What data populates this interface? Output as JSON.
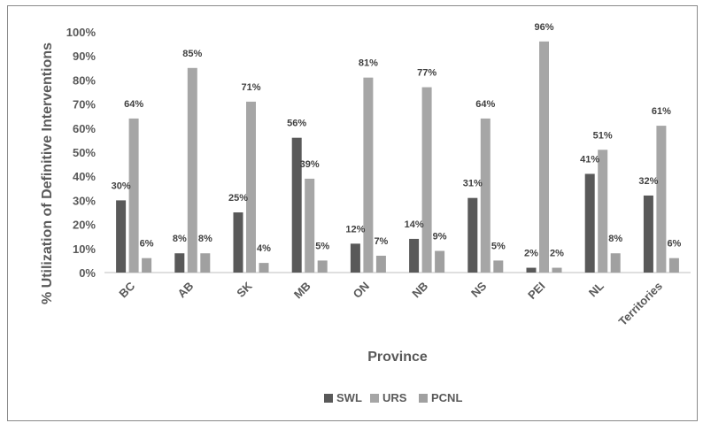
{
  "chart_data": {
    "type": "bar",
    "title": "",
    "xlabel": "Province",
    "ylabel": "% Utilization of Definitive Interventions",
    "ylim": [
      0,
      100
    ],
    "yticks": [
      "0%",
      "10%",
      "20%",
      "30%",
      "40%",
      "50%",
      "60%",
      "70%",
      "80%",
      "90%",
      "100%"
    ],
    "grid": false,
    "legend_position": "bottom",
    "categories": [
      "BC",
      "AB",
      "SK",
      "MB",
      "ON",
      "NB",
      "NS",
      "PEI",
      "NL",
      "Territories"
    ],
    "series": [
      {
        "name": "SWL",
        "color": "#595959",
        "values": [
          30,
          8,
          25,
          56,
          12,
          14,
          31,
          2,
          41,
          32
        ],
        "labels": [
          "30%",
          "8%",
          "25%",
          "56%",
          "12%",
          "14%",
          "31%",
          "2%",
          "41%",
          "32%"
        ]
      },
      {
        "name": "URS",
        "color": "#a6a6a6",
        "values": [
          64,
          85,
          71,
          39,
          81,
          77,
          64,
          96,
          51,
          61
        ],
        "labels": [
          "64%",
          "85%",
          "71%",
          "39%",
          "81%",
          "77%",
          "64%",
          "96%",
          "51%",
          "61%"
        ]
      },
      {
        "name": "PCNL",
        "color": "#a0a0a0",
        "values": [
          6,
          8,
          4,
          5,
          7,
          9,
          5,
          2,
          8,
          6
        ],
        "labels": [
          "6%",
          "8%",
          "4%",
          "5%",
          "7%",
          "9%",
          "5%",
          "2%",
          "8%",
          "6%"
        ]
      }
    ]
  }
}
